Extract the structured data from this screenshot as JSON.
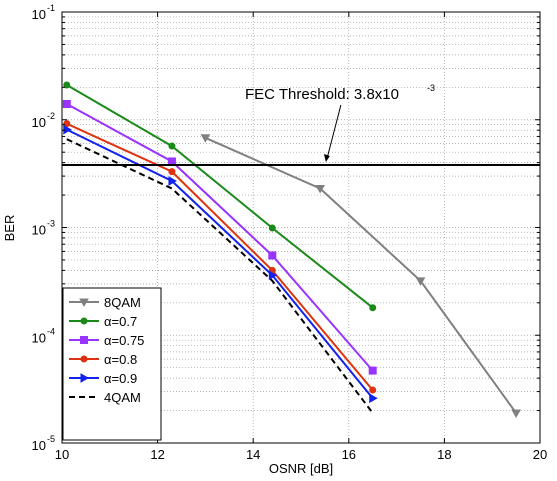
{
  "chart_data": {
    "type": "line",
    "xlabel": "OSNR [dB]",
    "ylabel": "BER",
    "xlim": [
      10,
      20
    ],
    "ylim_log10": [
      -5,
      -1
    ],
    "y_scale": "log",
    "grid": true,
    "x_ticks": [
      10,
      12,
      14,
      16,
      18,
      20
    ],
    "y_ticks": [
      {
        "base": "10",
        "exp": "-5",
        "value": 1e-05
      },
      {
        "base": "10",
        "exp": "-4",
        "value": 0.0001
      },
      {
        "base": "10",
        "exp": "-3",
        "value": 0.001
      },
      {
        "base": "10",
        "exp": "-2",
        "value": 0.01
      },
      {
        "base": "10",
        "exp": "-1",
        "value": 0.1
      }
    ],
    "legend_position": "bottom-left",
    "annotation": {
      "prefix": "FEC Threshold: 3.8x10",
      "exp": "-3",
      "threshold": 0.0038,
      "arrow_target": [
        15.5,
        0.0038
      ]
    },
    "series": [
      {
        "name": "8QAM",
        "color": "#808080",
        "marker": "triangle-down",
        "dash": "",
        "x": [
          13.0,
          15.4,
          17.5,
          19.5
        ],
        "y": [
          0.0068,
          0.0023,
          0.00032,
          1.9e-05
        ]
      },
      {
        "name": "α=0.7",
        "color": "#1a8a1a",
        "marker": "circle",
        "dash": "",
        "x": [
          10.1,
          12.3,
          14.4,
          16.5
        ],
        "y": [
          0.021,
          0.0057,
          0.00099,
          0.00018
        ]
      },
      {
        "name": "α=0.75",
        "color": "#9933ff",
        "marker": "square",
        "dash": "",
        "x": [
          10.1,
          12.3,
          14.4,
          16.5
        ],
        "y": [
          0.014,
          0.0041,
          0.00055,
          4.7e-05
        ]
      },
      {
        "name": "α=0.8",
        "color": "#dd3311",
        "marker": "circle",
        "dash": "",
        "x": [
          10.1,
          12.3,
          14.4,
          16.5
        ],
        "y": [
          0.0092,
          0.0033,
          0.0004,
          3.1e-05
        ]
      },
      {
        "name": "α=0.9",
        "color": "#1122ee",
        "marker": "triangle-right",
        "dash": "",
        "x": [
          10.1,
          12.3,
          14.4,
          16.5
        ],
        "y": [
          0.0081,
          0.0027,
          0.00036,
          2.6e-05
        ]
      },
      {
        "name": "4QAM",
        "color": "#000000",
        "marker": "none",
        "dash": "6,4",
        "x": [
          10.1,
          12.3,
          14.4,
          16.5
        ],
        "y": [
          0.0066,
          0.0023,
          0.00032,
          1.9e-05
        ]
      }
    ]
  }
}
